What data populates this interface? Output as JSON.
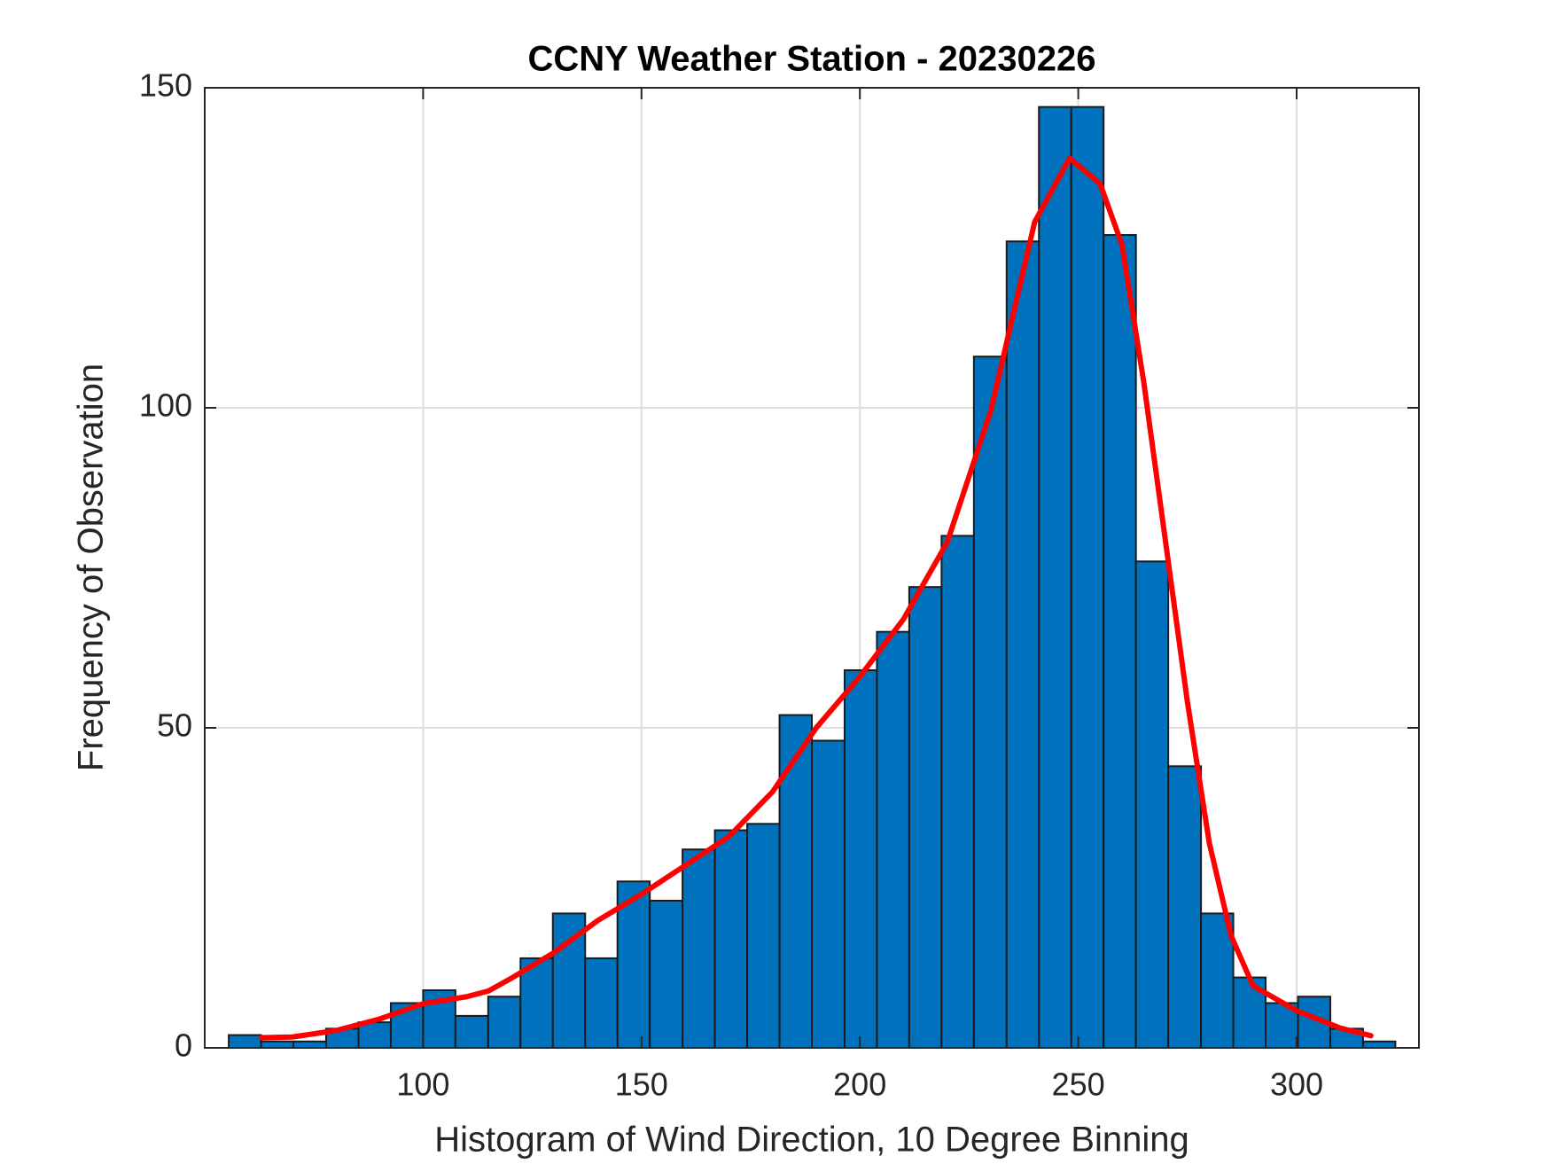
{
  "chart_data": {
    "type": "histogram",
    "title": "CCNY Weather Station - 20230226",
    "xlabel": "Histogram of Wind Direction, 10 Degree Binning",
    "ylabel": "Frequency of Observation",
    "bins": [
      55.5,
      62.9,
      70.3,
      77.8,
      85.2,
      92.6,
      100.0,
      107.4,
      114.9,
      122.3,
      129.7,
      137.1,
      144.5,
      151.9,
      159.4,
      166.8,
      174.2,
      181.6,
      189.0,
      196.5,
      203.9,
      211.3,
      218.7,
      226.1,
      233.6,
      241.0,
      248.4,
      255.8,
      263.2,
      270.6,
      278.1,
      285.5,
      292.9,
      300.3,
      307.7,
      315.2,
      322.6
    ],
    "counts": [
      2,
      1,
      1,
      3,
      4,
      7,
      9,
      5,
      8,
      14,
      21,
      14,
      26,
      23,
      31,
      34,
      35,
      52,
      48,
      59,
      65,
      72,
      80,
      108,
      126,
      147,
      147,
      127,
      76,
      44,
      21,
      11,
      7,
      8,
      3,
      1
    ],
    "color": "#0072bd",
    "fit": {
      "color": "#ff0000",
      "x": [
        63,
        70,
        80,
        90,
        100,
        110,
        115,
        120,
        130,
        140,
        150,
        160,
        170,
        180,
        190,
        200,
        210,
        220,
        230,
        240,
        248,
        255,
        260,
        265,
        270,
        275,
        280,
        285,
        290,
        300,
        310,
        317
      ],
      "y": [
        1.6,
        1.7,
        2.7,
        4.5,
        6.9,
        8,
        8.9,
        10.8,
        14.9,
        19.9,
        24,
        28.5,
        33,
        40,
        50,
        58,
        67,
        79,
        99.6,
        129,
        139,
        135,
        125.5,
        104,
        79,
        54,
        32,
        17.5,
        9.7,
        5.8,
        3.1,
        1.9
      ]
    },
    "xlim": [
      50,
      328
    ],
    "ylim": [
      0,
      150
    ],
    "xticks": [
      100,
      150,
      200,
      250,
      300
    ],
    "yticks": [
      0,
      50,
      100,
      150
    ],
    "grid": true
  }
}
